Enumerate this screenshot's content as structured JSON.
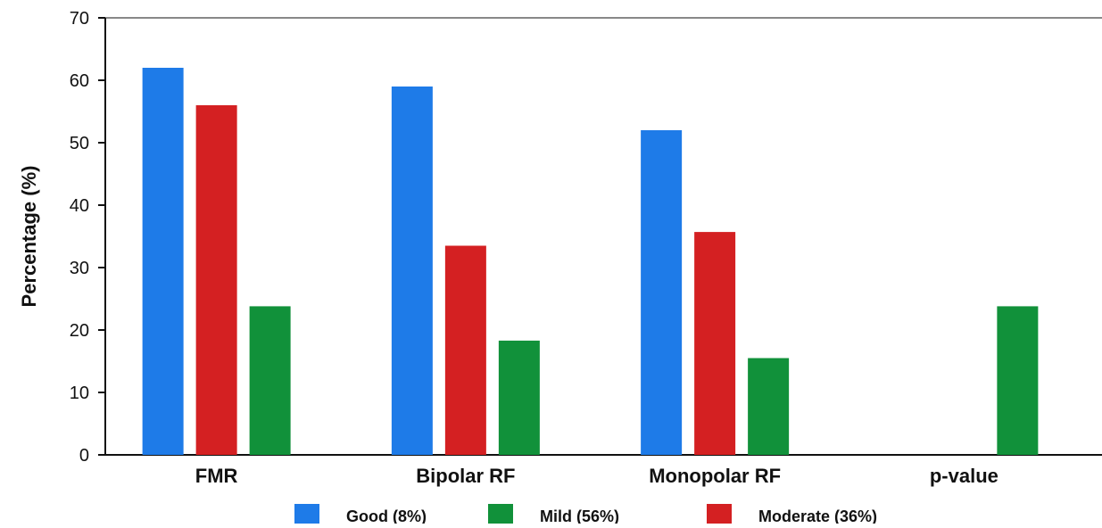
{
  "chart_data": {
    "type": "bar",
    "title": "",
    "xlabel": "",
    "ylabel": "Percentage (%)",
    "ylim": [
      0,
      70
    ],
    "yticks": [
      0,
      10,
      20,
      30,
      40,
      50,
      60,
      70
    ],
    "grid": false,
    "legend_position": "bottom",
    "categories": [
      "FMR",
      "Bipolar RF",
      "Monopolar RF",
      "p-value"
    ],
    "series": [
      {
        "name": "Good (8%)",
        "color": "#1e7be8",
        "values": [
          62,
          59,
          52,
          null
        ]
      },
      {
        "name": "Moderate (36%)",
        "color": "#d42022",
        "values": [
          56,
          33.5,
          35.7,
          null
        ]
      },
      {
        "name": "Mild (56%)",
        "color": "#11913a",
        "values": [
          23.8,
          18.3,
          15.5,
          23.8
        ]
      }
    ],
    "legend_order": [
      "Good (8%)",
      "Mild (56%)",
      "Moderate (36%)"
    ]
  }
}
